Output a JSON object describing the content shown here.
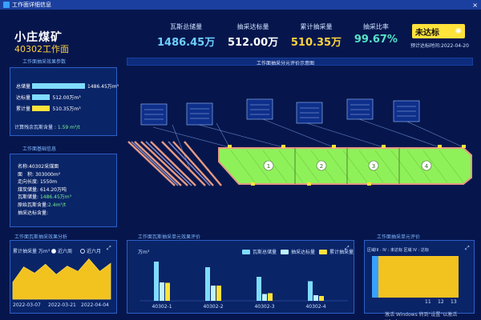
{
  "window": {
    "title": "工作面详细信息",
    "close_label": "×"
  },
  "header": {
    "mine_name": "小庄煤矿",
    "face_name": "40302工作面"
  },
  "kpis": [
    {
      "label": "瓦斯总储量",
      "value": "1486.45万",
      "color": "#6fd0ff"
    },
    {
      "label": "抽采达标量",
      "value": "512.00万",
      "color": "#ffffff"
    },
    {
      "label": "累计抽采量",
      "value": "510.35万",
      "color": "#ffd23c"
    },
    {
      "label": "抽采比率",
      "value": "99.67%",
      "color": "#56e3c6"
    }
  ],
  "status": {
    "label": "未达标",
    "predict": "预计达标时间:2022-04-20"
  },
  "effect_panel": {
    "title": "工作面抽采效果参数",
    "rows": [
      {
        "label": "总储量",
        "value": "1486.45万m³",
        "fill": 1.0,
        "color": "#7fdcff"
      },
      {
        "label": "达标量",
        "value": "512.00万m³",
        "fill": 0.34,
        "color": "#7fdcff"
      },
      {
        "label": "累计量",
        "value": "510.35万m³",
        "fill": 0.34,
        "color": "#ffe23a"
      }
    ],
    "residual_label": "计算残余瓦斯含量 : ",
    "residual_value": "1.59 m³/t"
  },
  "basic_panel": {
    "title": "工作面基础信息",
    "rows": [
      {
        "k": "名称:",
        "v": "40302采煤面",
        "hl": false
      },
      {
        "k": "面　积:",
        "v": "303000m²",
        "hl": false
      },
      {
        "k": "走向长度:",
        "v": "1550m",
        "hl": false
      },
      {
        "k": "煤炭储量:",
        "v": "614.20万吨",
        "hl": false
      },
      {
        "k": "瓦斯储量:",
        "v": "1486.45万m³",
        "hl": true
      },
      {
        "k": "原始瓦斯含量:",
        "v": "2.4m³/t",
        "hl": true
      },
      {
        "k": "抽采达标含量:",
        "v": "",
        "hl": false
      }
    ]
  },
  "map_panel": {
    "title": "工作面抽采分元评价示意图",
    "units": [
      "1",
      "2",
      "3",
      "4"
    ]
  },
  "trend_panel": {
    "title": "工作面瓦斯抽采效果分析",
    "series_label": "累计抽采量 万m³",
    "options": [
      {
        "label": "近六周",
        "selected": true
      },
      {
        "label": "近六月",
        "selected": false
      }
    ],
    "x_labels": [
      "2022-03-07",
      "2022-03-21",
      "2022-04-04"
    ],
    "values": [
      0.38,
      0.72,
      0.58,
      0.78,
      0.55,
      0.74,
      0.62,
      0.9,
      0.62,
      0.8
    ]
  },
  "unit_panel": {
    "title": "工作面瓦斯抽采单元效果评价",
    "y_unit": "万m³",
    "legend": [
      {
        "label": "瓦斯总储量",
        "color": "#7fdcff"
      },
      {
        "label": "抽采达标量",
        "color": "#bdf5ff"
      },
      {
        "label": "累计抽采量",
        "color": "#ffe23a"
      }
    ],
    "categories": [
      "40302-1",
      "40302-2",
      "40302-3",
      "40302-4"
    ],
    "series": [
      {
        "name": "瓦斯总储量",
        "values": [
          490,
          420,
          300,
          245
        ]
      },
      {
        "name": "抽采达标量",
        "values": [
          230,
          190,
          85,
          70
        ]
      },
      {
        "name": "累计抽采量",
        "values": [
          225,
          190,
          95,
          60
        ]
      }
    ],
    "ylim": [
      0,
      560
    ]
  },
  "area_panel": {
    "title": "工作面抽采单元评价",
    "header": "区域III · IV : 未达标 区域 IV : 达标",
    "x_labels": [
      "11",
      "12",
      "13"
    ]
  },
  "watermark": "激活 Windows 转到\"设置\"以激活 Windows。"
}
